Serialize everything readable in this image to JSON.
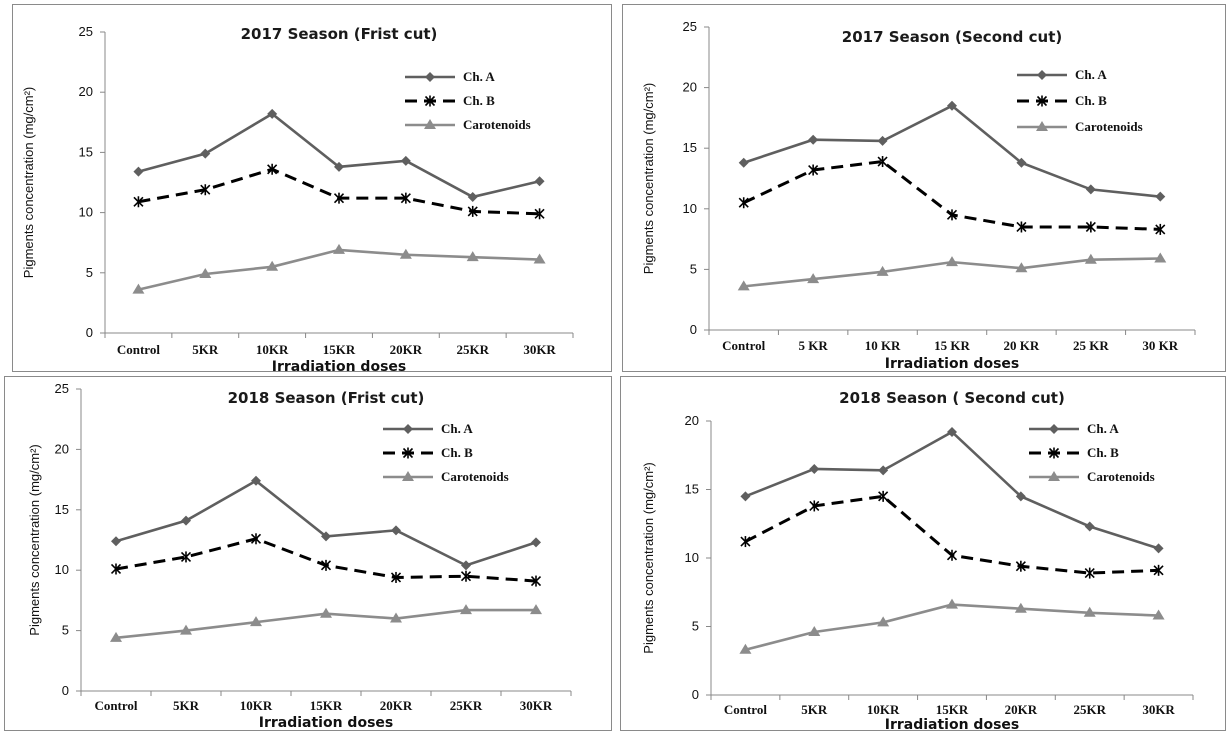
{
  "colors": {
    "ch_a": "#5f5f5f",
    "ch_b": "#000000",
    "carotenoids": "#8c8c8c"
  },
  "chart_data": [
    {
      "type": "line",
      "title": "2017 Season (Frist cut)",
      "xlabel": "Irradiation doses",
      "ylabel": "Pigments concentration (mg/cm²)",
      "categories": [
        "Control",
        "5KR",
        "10KR",
        "15KR",
        "20KR",
        "25KR",
        "30KR"
      ],
      "ylim": [
        0,
        25
      ],
      "yticks": [
        "0",
        "5",
        "10",
        "15",
        "20",
        "25"
      ],
      "legend_position": "top-right",
      "series": [
        {
          "name": "Ch. A",
          "values": [
            13.4,
            14.9,
            18.2,
            13.8,
            14.3,
            11.3,
            12.6
          ]
        },
        {
          "name": "Ch. B",
          "values": [
            10.9,
            11.9,
            13.6,
            11.2,
            11.2,
            10.1,
            9.9
          ]
        },
        {
          "name": "Carotenoids",
          "values": [
            3.6,
            4.9,
            5.5,
            6.9,
            6.5,
            6.3,
            6.1
          ]
        }
      ]
    },
    {
      "type": "line",
      "title": "2017 Season (Second cut)",
      "xlabel": "Irradiation doses",
      "ylabel": "Pigments concentration (mg/cm²)",
      "categories": [
        "Control",
        "5 KR",
        "10 KR",
        "15 KR",
        "20 KR",
        "25 KR",
        "30 KR"
      ],
      "ylim": [
        0,
        25
      ],
      "yticks": [
        "0",
        "5",
        "10",
        "15",
        "20",
        "25"
      ],
      "legend_position": "top-right",
      "series": [
        {
          "name": "Ch. A",
          "values": [
            13.8,
            15.7,
            15.6,
            18.5,
            13.8,
            11.6,
            11.0
          ]
        },
        {
          "name": "Ch. B",
          "values": [
            10.5,
            13.2,
            13.9,
            9.5,
            8.5,
            8.5,
            8.3
          ]
        },
        {
          "name": "Carotenoids",
          "values": [
            3.6,
            4.2,
            4.8,
            5.6,
            5.1,
            5.8,
            5.9
          ]
        }
      ]
    },
    {
      "type": "line",
      "title": "2018 Season (Frist cut)",
      "xlabel": "Irradiation doses",
      "ylabel": "Pigments concentration (mg/cm²)",
      "categories": [
        "Control",
        "5KR",
        "10KR",
        "15KR",
        "20KR",
        "25KR",
        "30KR"
      ],
      "ylim": [
        0,
        25
      ],
      "yticks": [
        "0",
        "5",
        "10",
        "15",
        "20",
        "25"
      ],
      "legend_position": "top-right",
      "series": [
        {
          "name": "Ch. A",
          "values": [
            12.4,
            14.1,
            17.4,
            12.8,
            13.3,
            10.4,
            12.3
          ]
        },
        {
          "name": "Ch. B",
          "values": [
            10.1,
            11.1,
            12.6,
            10.4,
            9.4,
            9.5,
            9.1
          ]
        },
        {
          "name": "Carotenoids",
          "values": [
            4.4,
            5.0,
            5.7,
            6.4,
            6.0,
            6.7,
            6.7
          ]
        }
      ]
    },
    {
      "type": "line",
      "title": "2018 Season ( Second cut)",
      "xlabel": "Irradiation doses",
      "ylabel": "Pigments concentration (mg/cm²)",
      "categories": [
        "Control",
        "5KR",
        "10KR",
        "15KR",
        "20KR",
        "25KR",
        "30KR"
      ],
      "ylim": [
        0,
        20
      ],
      "yticks": [
        "0",
        "5",
        "10",
        "15",
        "20"
      ],
      "legend_position": "top-right",
      "series": [
        {
          "name": "Ch. A",
          "values": [
            14.5,
            16.5,
            16.4,
            19.2,
            14.5,
            12.3,
            10.7
          ]
        },
        {
          "name": "Ch. B",
          "values": [
            11.2,
            13.8,
            14.5,
            10.2,
            9.4,
            8.9,
            9.1
          ]
        },
        {
          "name": "Carotenoids",
          "values": [
            3.3,
            4.6,
            5.3,
            6.6,
            6.3,
            6.0,
            5.8
          ]
        }
      ]
    }
  ]
}
